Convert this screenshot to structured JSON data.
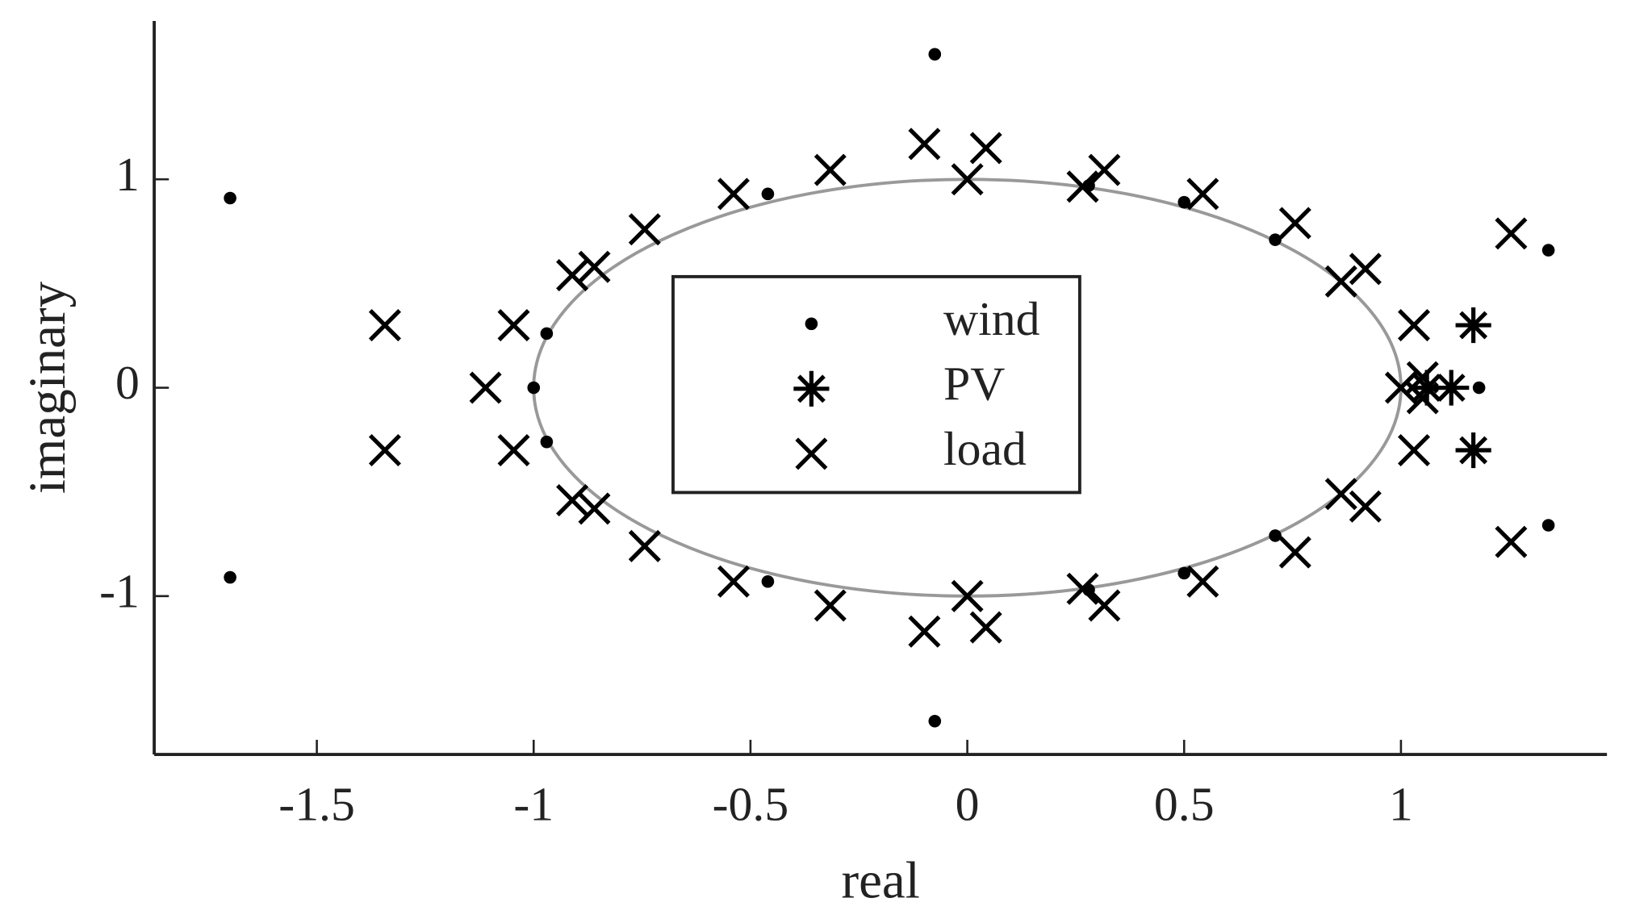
{
  "chart_data": {
    "type": "scatter",
    "x_label": "real",
    "y_label": "imaginary",
    "xlim": [
      -1.875,
      1.475
    ],
    "ylim": [
      -1.76,
      1.76
    ],
    "xticks": [
      -1.5,
      -1,
      -0.5,
      0,
      0.5,
      1
    ],
    "yticks": [
      -1,
      0,
      1
    ],
    "unit_circle": {
      "radius": 1,
      "color": "#999999"
    },
    "legend_position": "center",
    "series": [
      {
        "name": "wind",
        "marker": "dot",
        "color": "#000000",
        "x": [
          -1.7,
          -1.7,
          -0.075,
          -0.075,
          -1.0,
          -0.97,
          -0.97,
          -0.46,
          -0.46,
          0.5,
          0.5,
          0.71,
          0.71,
          1.18,
          1.34,
          1.34,
          0.28,
          0.28
        ],
        "y": [
          0.91,
          -0.91,
          1.6,
          -1.6,
          0,
          0.26,
          -0.26,
          0.93,
          -0.93,
          0.89,
          -0.89,
          0.71,
          -0.71,
          0,
          0.66,
          -0.66,
          0.97,
          -0.97
        ]
      },
      {
        "name": "PV",
        "marker": "asterisk",
        "color": "#000000",
        "x": [
          1.167,
          1.167,
          1.116,
          1.06
        ],
        "y": [
          0.3,
          -0.3,
          0,
          0
        ]
      },
      {
        "name": "load",
        "marker": "cross",
        "color": "#000000",
        "x": [
          -1.343,
          -1.343,
          -1.046,
          -1.046,
          -1.111,
          -0.911,
          -0.911,
          -0.86,
          -0.86,
          -0.744,
          -0.744,
          -0.539,
          -0.539,
          -0.316,
          -0.316,
          -0.099,
          -0.099,
          0.043,
          0.043,
          0,
          0,
          0.266,
          0.266,
          0.316,
          0.316,
          0.543,
          0.543,
          0.756,
          0.756,
          0.862,
          0.862,
          0.918,
          0.918,
          1.03,
          1.03,
          1.0,
          1.05,
          1.05,
          1.254,
          1.254
        ],
        "y": [
          0.3,
          -0.3,
          0.3,
          -0.3,
          0,
          0.54,
          -0.54,
          0.58,
          -0.58,
          0.76,
          -0.76,
          0.93,
          -0.93,
          1.045,
          -1.045,
          1.17,
          -1.17,
          1.15,
          -1.15,
          1.0,
          -1.0,
          0.965,
          -0.965,
          1.045,
          -1.045,
          0.93,
          -0.93,
          0.79,
          -0.79,
          0.51,
          -0.51,
          0.57,
          -0.57,
          0.3,
          -0.3,
          0,
          0.05,
          -0.05,
          0.74,
          -0.74
        ]
      }
    ]
  }
}
